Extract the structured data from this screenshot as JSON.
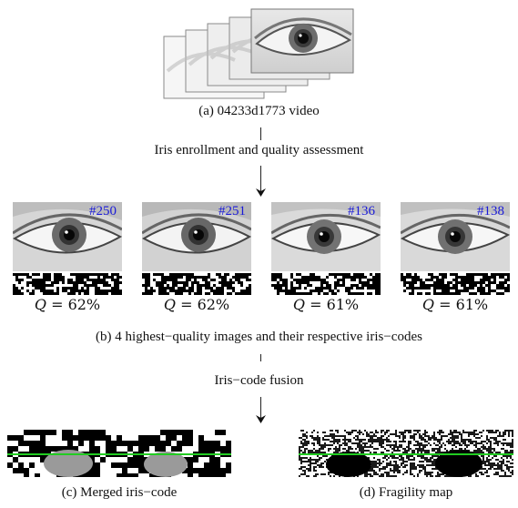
{
  "section_a": {
    "caption": "(a) 04233d1773 video"
  },
  "step1": {
    "label": "Iris enrollment and quality assessment"
  },
  "frames": [
    {
      "id": "#250",
      "q_var": "Q",
      "q_eq": " = ",
      "q_val": "62%"
    },
    {
      "id": "#251",
      "q_var": "Q",
      "q_eq": " = ",
      "q_val": "62%"
    },
    {
      "id": "#136",
      "q_var": "Q",
      "q_eq": " = ",
      "q_val": "61%"
    },
    {
      "id": "#138",
      "q_var": "Q",
      "q_eq": " = ",
      "q_val": "61%"
    }
  ],
  "section_b": {
    "caption": "(b) 4 highest−quality images and their respective iris−codes"
  },
  "step2": {
    "label": "Iris−code fusion"
  },
  "section_c": {
    "caption": "(c) Merged iris−code"
  },
  "section_d": {
    "caption": "(d) Fragility map"
  },
  "colors": {
    "frame_id": "#1a1ad8",
    "fusion_line": "#22cc22"
  }
}
